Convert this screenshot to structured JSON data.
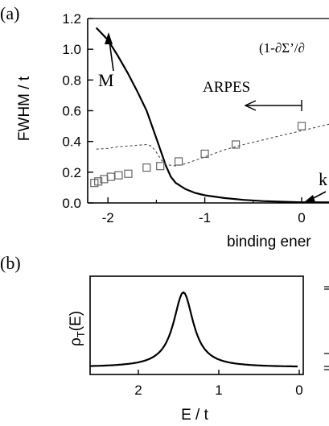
{
  "chart_data": [
    {
      "panel_label": "(a)",
      "type": "line",
      "ylabel": "FWHM / t",
      "xlabel": "binding ener",
      "x_ticks": [
        "-2",
        "-1",
        "0"
      ],
      "y_ticks": [
        "0.0",
        "0.2",
        "0.4",
        "0.6",
        "0.8",
        "1.0",
        "1.2"
      ],
      "xlim": [
        -2.45,
        0.45
      ],
      "ylim": [
        0,
        1.2
      ],
      "grid": false,
      "annotations": {
        "top_right": "(1-∂Σ’/∂",
        "arpes_label": "ARPES",
        "point_m": "M",
        "point_k": "k"
      },
      "series": [
        {
          "style": "solid",
          "x": [
            -2.12,
            -2.0,
            -1.9,
            -1.8,
            -1.7,
            -1.6,
            -1.5,
            -1.45,
            -1.4,
            -1.35,
            -1.3,
            -1.2,
            -1.1,
            -1.0,
            -0.8,
            -0.6,
            -0.4,
            -0.2,
            0.0,
            0.2,
            0.4
          ],
          "y": [
            1.14,
            1.06,
            0.96,
            0.85,
            0.73,
            0.6,
            0.42,
            0.33,
            0.24,
            0.17,
            0.13,
            0.09,
            0.065,
            0.05,
            0.032,
            0.02,
            0.012,
            0.008,
            0.004,
            0.004,
            0.004
          ]
        },
        {
          "style": "dashed",
          "x": [
            -2.12,
            -2.0,
            -1.9,
            -1.8,
            -1.7,
            -1.6,
            -1.55,
            -1.5,
            -1.45,
            -1.4,
            -1.3,
            -1.2,
            -1.0,
            -0.8,
            -0.6,
            -0.4,
            -0.2,
            0.0,
            0.2,
            0.4
          ],
          "y": [
            0.35,
            0.355,
            0.365,
            0.37,
            0.375,
            0.38,
            0.37,
            0.33,
            0.28,
            0.25,
            0.24,
            0.255,
            0.3,
            0.345,
            0.38,
            0.41,
            0.44,
            0.47,
            0.5,
            0.53
          ]
        },
        {
          "style": "squares",
          "x": [
            -2.14,
            -2.1,
            -2.04,
            -1.97,
            -1.89,
            -1.79,
            -1.6,
            -1.46,
            -1.27,
            -1.0,
            -0.68,
            0.0
          ],
          "y": [
            0.13,
            0.14,
            0.155,
            0.17,
            0.18,
            0.19,
            0.23,
            0.24,
            0.27,
            0.32,
            0.38,
            0.5
          ]
        }
      ]
    },
    {
      "panel_label": "(b)",
      "type": "line",
      "ylabel": "ρT(E)",
      "ylabel_main": "ρ",
      "ylabel_sub": "T",
      "ylabel_tail": "(E)",
      "xlabel": "E / t",
      "x_ticks": [
        "2",
        "1",
        "0"
      ],
      "xlim": [
        2.6,
        -0.05
      ],
      "peak_E": 1.44,
      "peak_hwhm": 0.15,
      "baseline": 0.05,
      "series": [
        {
          "style": "solid",
          "shape": "lorentzian"
        }
      ]
    }
  ]
}
